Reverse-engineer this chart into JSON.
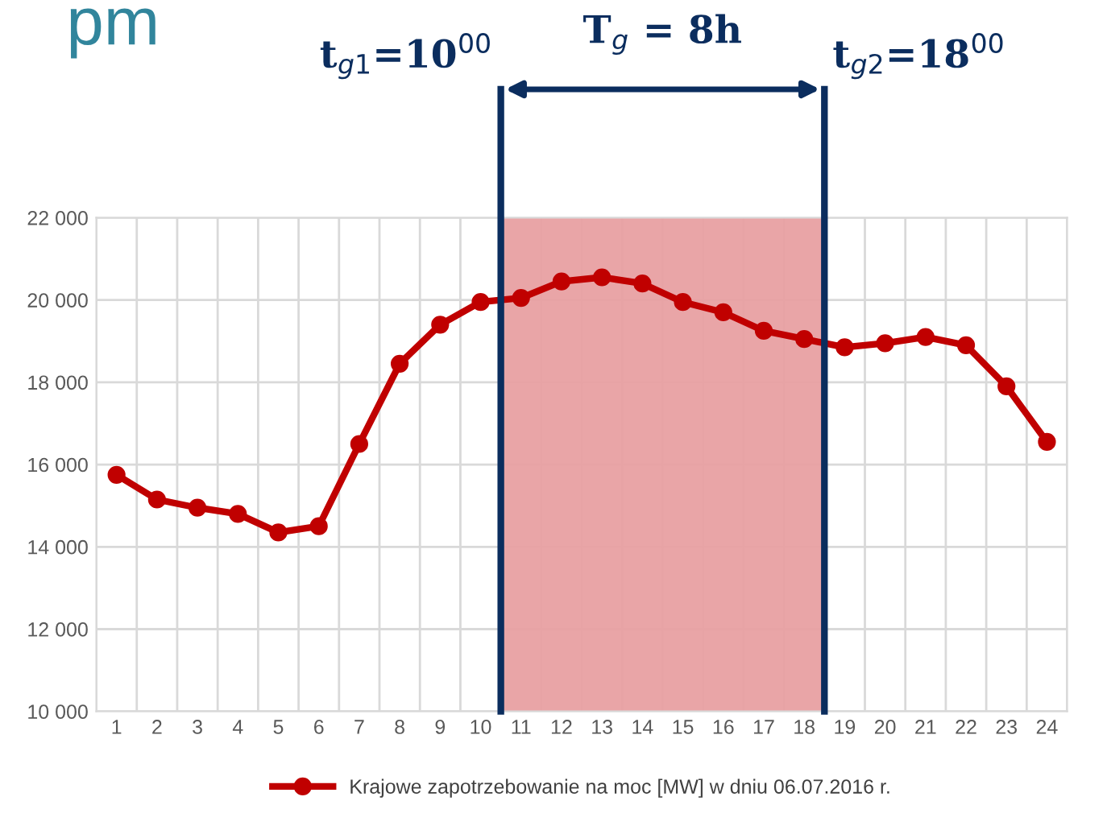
{
  "chart_data": {
    "type": "line",
    "categories": [
      "1",
      "2",
      "3",
      "4",
      "5",
      "6",
      "7",
      "8",
      "9",
      "10",
      "11",
      "12",
      "13",
      "14",
      "15",
      "16",
      "17",
      "18",
      "19",
      "20",
      "21",
      "22",
      "23",
      "24"
    ],
    "series": [
      {
        "name": "Krajowe zapotrzebowanie na moc [MW] w dniu 06.07.2016 r.",
        "color": "#c00000",
        "values": [
          15750,
          15150,
          14950,
          14800,
          14350,
          14500,
          16500,
          18450,
          19400,
          19950,
          20050,
          20450,
          20550,
          20400,
          19950,
          19700,
          19250,
          19050,
          18850,
          18950,
          19100,
          18900,
          17900,
          16550
        ]
      }
    ],
    "ylim": [
      10000,
      22000
    ],
    "yticks": [
      {
        "value": 10000,
        "label": "10 000"
      },
      {
        "value": 12000,
        "label": "12 000"
      },
      {
        "value": 14000,
        "label": "14 000"
      },
      {
        "value": 16000,
        "label": "16 000"
      },
      {
        "value": 18000,
        "label": "18 000"
      },
      {
        "value": 20000,
        "label": "20 000"
      },
      {
        "value": 22000,
        "label": "22 000"
      }
    ],
    "grid": true,
    "marker": "circle",
    "line_style": "solid",
    "legend": "bottom",
    "bands": [
      {
        "axis": "x",
        "from": "11",
        "to": "18",
        "color": "#e8a0a2"
      }
    ],
    "annotations": [
      "pm",
      "t$_{g1}$=10$^{00}$",
      "T$_{g}$ = 8h",
      "t$_{g2}$=18$^{00}$"
    ]
  }
}
